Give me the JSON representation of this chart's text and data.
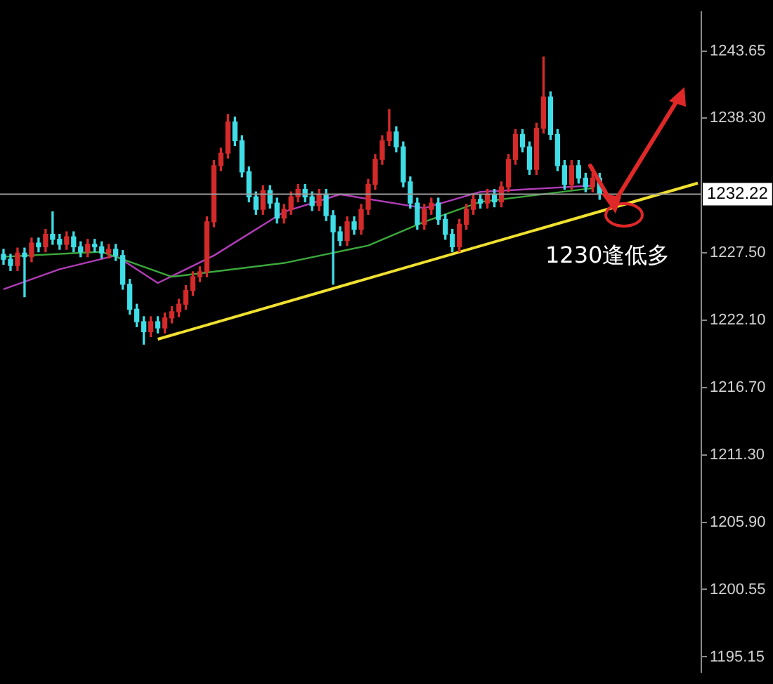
{
  "chart_data": {
    "type": "candlestick",
    "categories": [
      null,
      null,
      null,
      null,
      null,
      null,
      null,
      null,
      null,
      null,
      null,
      null,
      null,
      null,
      null,
      null,
      null,
      null,
      null,
      null,
      null,
      null,
      null,
      null,
      null,
      null,
      null,
      null,
      null,
      null,
      null,
      null,
      null,
      null,
      null,
      null,
      null,
      null,
      null,
      null,
      null,
      null,
      null,
      null,
      null,
      null,
      null,
      null,
      null,
      null,
      null,
      null,
      null,
      null,
      null,
      null,
      null,
      null,
      null,
      null,
      null,
      null,
      null,
      null,
      null,
      null,
      null,
      null,
      null,
      null,
      null,
      null,
      null,
      null,
      null,
      null,
      null,
      null,
      null,
      null,
      null,
      null,
      null,
      null,
      null,
      null,
      null,
      null,
      null,
      null,
      null,
      null,
      null,
      null,
      null,
      null,
      null,
      null,
      null,
      null
    ],
    "ohlc": [
      [
        1227.4,
        1227.8,
        1226.6,
        1227.0
      ],
      [
        1227.0,
        1227.4,
        1226.1,
        1226.5
      ],
      [
        1226.5,
        1227.9,
        1226.1,
        1227.5
      ],
      [
        1227.5,
        1227.9,
        1224.0,
        1227.2
      ],
      [
        1227.2,
        1228.7,
        1226.8,
        1228.3
      ],
      [
        1228.3,
        1228.7,
        1227.6,
        1228.0
      ],
      [
        1228.0,
        1229.4,
        1227.6,
        1229.0
      ],
      [
        1229.0,
        1230.8,
        1228.2,
        1228.6
      ],
      [
        1228.6,
        1229.0,
        1227.8,
        1228.2
      ],
      [
        1228.2,
        1229.2,
        1227.8,
        1228.8
      ],
      [
        1228.8,
        1229.2,
        1227.6,
        1228.0
      ],
      [
        1228.0,
        1228.4,
        1227.2,
        1227.6
      ],
      [
        1227.6,
        1228.6,
        1227.2,
        1228.2
      ],
      [
        1228.2,
        1228.6,
        1227.6,
        1228.0
      ],
      [
        1228.0,
        1228.4,
        1227.1,
        1227.5
      ],
      [
        1227.5,
        1228.2,
        1227.1,
        1227.8
      ],
      [
        1227.8,
        1228.2,
        1226.9,
        1227.3
      ],
      [
        1227.3,
        1227.7,
        1224.6,
        1225.0
      ],
      [
        1225.0,
        1225.4,
        1222.6,
        1223.0
      ],
      [
        1223.0,
        1223.4,
        1221.6,
        1222.0
      ],
      [
        1222.0,
        1222.4,
        1220.2,
        1221.2
      ],
      [
        1221.2,
        1222.4,
        1220.8,
        1222.0
      ],
      [
        1222.0,
        1222.4,
        1221.1,
        1221.5
      ],
      [
        1221.5,
        1222.7,
        1221.1,
        1222.3
      ],
      [
        1222.3,
        1223.2,
        1221.9,
        1222.8
      ],
      [
        1222.8,
        1223.8,
        1222.4,
        1223.4
      ],
      [
        1223.4,
        1224.9,
        1223.0,
        1224.5
      ],
      [
        1224.5,
        1226.0,
        1224.1,
        1225.6
      ],
      [
        1225.6,
        1226.4,
        1225.2,
        1226.0
      ],
      [
        1226.0,
        1230.4,
        1225.6,
        1230.0
      ],
      [
        1230.0,
        1234.9,
        1229.6,
        1234.5
      ],
      [
        1234.5,
        1235.9,
        1234.1,
        1235.5
      ],
      [
        1235.5,
        1238.6,
        1235.1,
        1238.0
      ],
      [
        1238.0,
        1238.4,
        1236.1,
        1236.5
      ],
      [
        1236.5,
        1236.9,
        1233.6,
        1234.0
      ],
      [
        1234.0,
        1234.4,
        1231.6,
        1232.0
      ],
      [
        1232.0,
        1232.4,
        1230.6,
        1231.0
      ],
      [
        1231.0,
        1232.9,
        1230.6,
        1232.5
      ],
      [
        1232.5,
        1232.9,
        1231.1,
        1231.5
      ],
      [
        1231.5,
        1231.9,
        1229.9,
        1230.3
      ],
      [
        1230.3,
        1231.4,
        1229.9,
        1231.0
      ],
      [
        1231.0,
        1232.4,
        1230.6,
        1232.0
      ],
      [
        1232.0,
        1233.0,
        1231.6,
        1232.6
      ],
      [
        1232.6,
        1233.0,
        1231.6,
        1232.0
      ],
      [
        1232.0,
        1232.4,
        1230.9,
        1231.3
      ],
      [
        1231.3,
        1232.6,
        1230.9,
        1232.2
      ],
      [
        1232.2,
        1232.6,
        1230.1,
        1230.5
      ],
      [
        1230.5,
        1230.9,
        1225.0,
        1229.2
      ],
      [
        1229.2,
        1229.6,
        1228.1,
        1228.5
      ],
      [
        1228.5,
        1230.4,
        1228.1,
        1230.0
      ],
      [
        1230.0,
        1230.4,
        1229.0,
        1229.4
      ],
      [
        1229.4,
        1231.4,
        1229.0,
        1231.0
      ],
      [
        1231.0,
        1233.4,
        1230.6,
        1233.0
      ],
      [
        1233.0,
        1235.4,
        1232.6,
        1235.0
      ],
      [
        1235.0,
        1236.9,
        1234.6,
        1236.5
      ],
      [
        1236.5,
        1239.0,
        1236.1,
        1237.2
      ],
      [
        1237.2,
        1237.6,
        1235.6,
        1236.0
      ],
      [
        1236.0,
        1236.4,
        1232.8,
        1233.2
      ],
      [
        1233.2,
        1233.6,
        1231.1,
        1231.5
      ],
      [
        1231.5,
        1231.9,
        1229.4,
        1229.8
      ],
      [
        1229.8,
        1231.4,
        1229.4,
        1231.0
      ],
      [
        1231.0,
        1231.9,
        1230.6,
        1231.5
      ],
      [
        1231.5,
        1231.9,
        1229.8,
        1230.2
      ],
      [
        1230.2,
        1230.6,
        1228.6,
        1229.0
      ],
      [
        1229.0,
        1229.4,
        1227.6,
        1228.0
      ],
      [
        1228.0,
        1230.2,
        1227.6,
        1229.8
      ],
      [
        1229.8,
        1231.4,
        1229.4,
        1231.0
      ],
      [
        1231.0,
        1232.2,
        1230.6,
        1231.8
      ],
      [
        1231.8,
        1232.2,
        1231.1,
        1231.5
      ],
      [
        1231.5,
        1232.6,
        1231.1,
        1232.2
      ],
      [
        1232.2,
        1232.6,
        1231.2,
        1231.6
      ],
      [
        1231.6,
        1233.2,
        1231.2,
        1232.8
      ],
      [
        1232.8,
        1235.4,
        1232.4,
        1235.0
      ],
      [
        1235.0,
        1237.4,
        1234.6,
        1237.0
      ],
      [
        1237.0,
        1237.4,
        1235.6,
        1236.0
      ],
      [
        1236.0,
        1236.4,
        1233.8,
        1234.2
      ],
      [
        1234.2,
        1237.9,
        1233.8,
        1237.5
      ],
      [
        1237.5,
        1243.2,
        1237.1,
        1240.0
      ],
      [
        1240.0,
        1240.4,
        1236.6,
        1237.0
      ],
      [
        1237.0,
        1237.4,
        1234.1,
        1234.5
      ],
      [
        1234.5,
        1234.9,
        1232.6,
        1233.0
      ],
      [
        1233.0,
        1234.9,
        1232.6,
        1234.5
      ],
      [
        1234.5,
        1234.9,
        1233.1,
        1233.5
      ],
      [
        1233.5,
        1233.9,
        1232.4,
        1232.8
      ],
      [
        1232.8,
        1233.9,
        1232.4,
        1233.5
      ],
      [
        1233.5,
        1233.9,
        1231.8,
        1232.22
      ],
      null,
      null,
      null,
      null,
      null,
      null,
      null,
      null,
      null,
      null,
      null,
      null,
      null,
      null
    ],
    "colors": [
      "#3fdde6",
      "#3fdde6",
      "#d42a2a",
      "#3fdde6",
      "#d42a2a",
      "#3fdde6",
      "#d42a2a",
      "#3fdde6",
      "#3fdde6",
      "#d42a2a",
      "#3fdde6",
      "#3fdde6",
      "#d42a2a",
      "#3fdde6",
      "#3fdde6",
      "#d42a2a",
      "#3fdde6",
      "#3fdde6",
      "#3fdde6",
      "#3fdde6",
      "#3fdde6",
      "#d42a2a",
      "#3fdde6",
      "#d42a2a",
      "#d42a2a",
      "#d42a2a",
      "#d42a2a",
      "#d42a2a",
      "#d42a2a",
      "#d42a2a",
      "#d42a2a",
      "#d42a2a",
      "#d42a2a",
      "#3fdde6",
      "#3fdde6",
      "#3fdde6",
      "#3fdde6",
      "#d42a2a",
      "#3fdde6",
      "#3fdde6",
      "#d42a2a",
      "#d42a2a",
      "#d42a2a",
      "#3fdde6",
      "#3fdde6",
      "#d42a2a",
      "#3fdde6",
      "#3fdde6",
      "#3fdde6",
      "#d42a2a",
      "#3fdde6",
      "#d42a2a",
      "#d42a2a",
      "#d42a2a",
      "#d42a2a",
      "#d42a2a",
      "#3fdde6",
      "#3fdde6",
      "#3fdde6",
      "#3fdde6",
      "#d42a2a",
      "#d42a2a",
      "#3fdde6",
      "#3fdde6",
      "#3fdde6",
      "#d42a2a",
      "#d42a2a",
      "#d42a2a",
      "#3fdde6",
      "#d42a2a",
      "#3fdde6",
      "#d42a2a",
      "#d42a2a",
      "#d42a2a",
      "#3fdde6",
      "#3fdde6",
      "#d42a2a",
      "#d42a2a",
      "#3fdde6",
      "#3fdde6",
      "#3fdde6",
      "#d42a2a",
      "#3fdde6",
      "#3fdde6",
      "#d42a2a",
      "#3fdde6",
      null,
      null,
      null,
      null,
      null,
      null,
      null,
      null,
      null,
      null,
      null,
      null,
      null,
      null
    ],
    "series": [
      {
        "type": "line",
        "color": "#3ca83c",
        "values": [
          1227.2,
          null,
          null,
          null,
          null,
          null,
          null,
          null,
          null,
          null,
          null,
          null,
          null,
          null,
          1227.6,
          null,
          null,
          null,
          null,
          null,
          null,
          null,
          null,
          null,
          1225.6,
          null,
          null,
          null,
          null,
          null,
          null,
          null,
          null,
          null,
          null,
          null,
          null,
          null,
          null,
          null,
          1226.7,
          null,
          null,
          null,
          null,
          null,
          null,
          null,
          null,
          null,
          null,
          null,
          1228.1,
          null,
          null,
          null,
          null,
          null,
          null,
          null,
          1230.0,
          null,
          null,
          null,
          null,
          null,
          null,
          null,
          1231.6,
          null,
          null,
          null,
          null,
          null,
          null,
          null,
          null,
          null,
          null,
          null,
          null,
          null,
          null,
          null,
          1232.7,
          null,
          null,
          null,
          null,
          null,
          null,
          null,
          null,
          null,
          null,
          null,
          null,
          null,
          null,
          null
        ]
      },
      {
        "type": "line",
        "color": "#b23cb8",
        "values": [
          1224.6,
          null,
          null,
          null,
          null,
          null,
          null,
          null,
          1226.2,
          null,
          null,
          null,
          null,
          null,
          null,
          null,
          1227.3,
          null,
          null,
          null,
          null,
          null,
          1225.1,
          null,
          null,
          null,
          null,
          null,
          null,
          null,
          1227.3,
          null,
          null,
          null,
          null,
          null,
          null,
          null,
          null,
          null,
          1230.8,
          null,
          null,
          null,
          null,
          null,
          null,
          null,
          1232.2,
          null,
          null,
          null,
          null,
          null,
          null,
          null,
          null,
          null,
          null,
          null,
          1231.1,
          null,
          null,
          null,
          null,
          null,
          null,
          null,
          1232.4,
          null,
          null,
          null,
          null,
          null,
          null,
          null,
          null,
          null,
          null,
          null,
          null,
          null,
          null,
          null,
          1232.9,
          null,
          null,
          null,
          null,
          null,
          null,
          null,
          null,
          null,
          null,
          null,
          null,
          null,
          null,
          null
        ]
      },
      {
        "type": "line",
        "color": "#f0e030",
        "values": [
          null,
          null,
          null,
          null,
          null,
          null,
          null,
          null,
          null,
          null,
          null,
          null,
          null,
          null,
          null,
          null,
          null,
          null,
          null,
          null,
          null,
          null,
          1220.6,
          null,
          null,
          null,
          null,
          null,
          null,
          null,
          null,
          null,
          null,
          null,
          null,
          null,
          null,
          null,
          null,
          null,
          null,
          null,
          null,
          null,
          null,
          null,
          null,
          null,
          null,
          null,
          null,
          null,
          null,
          null,
          null,
          null,
          null,
          null,
          null,
          null,
          null,
          null,
          null,
          null,
          null,
          null,
          null,
          null,
          null,
          null,
          null,
          null,
          null,
          null,
          null,
          null,
          null,
          null,
          null,
          null,
          null,
          null,
          null,
          null,
          null,
          null,
          null,
          null,
          null,
          null,
          null,
          null,
          null,
          null,
          null,
          null,
          null,
          null,
          null,
          1233.1
        ]
      }
    ],
    "ylim": [
      1193.95,
      1246.8
    ],
    "yticks": [
      1243.65,
      {
        "value": 1238.3,
        "label": "1238.30"
      },
      {
        "value": 1227.5,
        "label": "1227.50"
      },
      {
        "value": 1222.1,
        "label": "1222.10"
      },
      {
        "value": 1216.7,
        "label": "1216.70"
      },
      {
        "value": 1211.3,
        "label": "1211.30"
      },
      {
        "value": 1205.9,
        "label": "1205.90"
      },
      1200.55,
      1195.15
    ],
    "ref_lines": [
      {
        "axis": "y",
        "value": 1232.22,
        "label": "1232.22",
        "color": "#9a9a9a"
      }
    ],
    "annotations": [
      "1230逢低多"
    ],
    "grid": false,
    "legend": false,
    "tick_labels": "y"
  }
}
